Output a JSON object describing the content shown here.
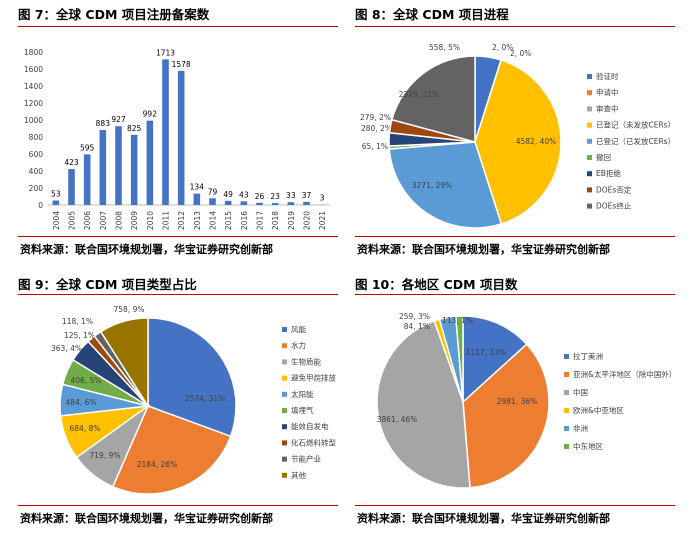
{
  "colors": {
    "rule": "#c00000",
    "bar": "#4472c4",
    "palette": [
      "#4472c4",
      "#ed7d31",
      "#a5a5a5",
      "#ffc000",
      "#5b9bd5",
      "#70ad47",
      "#264478",
      "#9e480e",
      "#636363",
      "#997300"
    ]
  },
  "fig7": {
    "title": "图 7：全球 CDM 项目注册备案数",
    "source": "资料来源：联合国环境规划署，华宝证券研究创新部"
  },
  "fig8": {
    "title": "图 8：全球 CDM 项目进程",
    "source": "资料来源：联合国环境规划署，华宝证券研究创新部"
  },
  "fig9": {
    "title": "图 9：全球 CDM 项目类型占比",
    "source": "资料来源：联合国环境规划署，华宝证券研究创新部"
  },
  "fig10": {
    "title": "图 10：各地区 CDM 项目数",
    "source": "资料来源：联合国环境规划署，华宝证券研究创新部"
  },
  "chart_data": [
    {
      "id": "fig7",
      "type": "bar",
      "categories": [
        "2004",
        "2005",
        "2006",
        "2007",
        "2008",
        "2009",
        "2010",
        "2011",
        "2012",
        "2013",
        "2014",
        "2015",
        "2016",
        "2017",
        "2018",
        "2019",
        "2020",
        "2021"
      ],
      "values": [
        53,
        423,
        595,
        883,
        927,
        825,
        992,
        1713,
        1578,
        134,
        79,
        49,
        43,
        26,
        23,
        33,
        37,
        3
      ],
      "data_labels": [
        "53",
        "423",
        "595",
        "883",
        "927",
        "825",
        "992",
        "1713",
        "1578",
        "134",
        "79",
        "49",
        "43",
        "26",
        "23",
        "33",
        "37",
        "3"
      ],
      "ylim": [
        0,
        1800
      ],
      "yticks": [
        "0",
        "200",
        "400",
        "600",
        "800",
        "1000",
        "1200",
        "1400",
        "1600",
        "1800"
      ],
      "grid": false
    },
    {
      "id": "fig8",
      "type": "pie",
      "labels": [
        "验证时",
        "申请中",
        "审查中",
        "已登记（未发放CERs）",
        "已登记（已发放CERs）",
        "撤回",
        "EB拒绝",
        "DOEs否定",
        "DOEs终止"
      ],
      "values": [
        558,
        2,
        2,
        4582,
        3271,
        65,
        280,
        279,
        2379
      ],
      "data_labels": [
        "558, 5%",
        "2, 0%",
        "2, 0%",
        "4582, 40%",
        "3271, 29%",
        "65, 1%",
        "280, 2%",
        "279, 2%",
        "2379, 21%"
      ],
      "legend": "right"
    },
    {
      "id": "fig9",
      "type": "pie",
      "labels": [
        "风能",
        "水力",
        "生物质能",
        "避免甲烷排放",
        "太阳能",
        "填埋气",
        "能效自发电",
        "化石燃料转型",
        "节能产业",
        "其他"
      ],
      "values": [
        2574,
        2184,
        719,
        684,
        484,
        406,
        363,
        125,
        118,
        758
      ],
      "data_labels": [
        "2574, 31%",
        "2184, 26%",
        "719, 9%",
        "684, 8%",
        "484, 6%",
        "406, 5%",
        "363, 4%",
        "125, 1%",
        "118, 1%",
        "758, 9%"
      ],
      "legend": "right"
    },
    {
      "id": "fig10",
      "type": "pie",
      "labels": [
        "拉丁美洲",
        "亚洲&太平洋地区（除中国外）",
        "中国",
        "欧洲&中亚地区",
        "非洲",
        "中东地区"
      ],
      "values": [
        1117,
        2981,
        3861,
        84,
        259,
        113
      ],
      "data_labels": [
        "1117, 13%",
        "2981, 36%",
        "3861, 46%",
        "84, 1%",
        "259, 3%",
        "113, 1%"
      ],
      "legend": "right"
    }
  ]
}
